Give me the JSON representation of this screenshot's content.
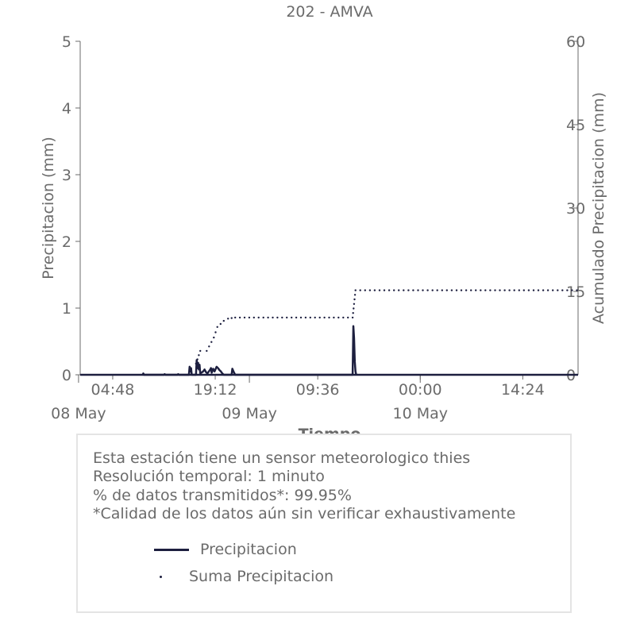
{
  "chart_data": {
    "type": "line",
    "title": "202 - AMVA",
    "xlabel": "Tiempo",
    "ylabel": "Precipitacion (mm)",
    "y2label": "Acumulado Precipitacion (mm)",
    "ylim": [
      0,
      5
    ],
    "y2lim": [
      0,
      60
    ],
    "yticks": [
      0,
      1,
      2,
      3,
      4,
      5
    ],
    "y2ticks": [
      0,
      15,
      30,
      45,
      60
    ],
    "xrange_hours": [
      "08 May 00:14",
      "10 May 22:10"
    ],
    "xticks_time": [
      "04:48",
      "19:12",
      "09:36",
      "00:00",
      "14:24"
    ],
    "xticks_date": [
      "08 May",
      "09 May",
      "10 May"
    ],
    "grid": false,
    "series": [
      {
        "name": "Precipitacion",
        "style": "solid",
        "color": "#1d1f3f",
        "points": [
          [
            "08 May 09:00",
            0.0
          ],
          [
            "08 May 09:06",
            0.02
          ],
          [
            "08 May 09:12",
            0.0
          ],
          [
            "08 May 12:00",
            0.0
          ],
          [
            "08 May 12:06",
            0.01
          ],
          [
            "08 May 12:12",
            0.0
          ],
          [
            "08 May 13:54",
            0.0
          ],
          [
            "08 May 14:00",
            0.01
          ],
          [
            "08 May 14:06",
            0.0
          ],
          [
            "08 May 15:30",
            0.0
          ],
          [
            "08 May 15:36",
            0.12
          ],
          [
            "08 May 15:42",
            0.05
          ],
          [
            "08 May 15:48",
            0.1
          ],
          [
            "08 May 15:54",
            0.0
          ],
          [
            "08 May 16:30",
            0.0
          ],
          [
            "08 May 16:36",
            0.22
          ],
          [
            "08 May 16:42",
            0.1
          ],
          [
            "08 May 16:48",
            0.18
          ],
          [
            "08 May 16:54",
            0.08
          ],
          [
            "08 May 17:00",
            0.15
          ],
          [
            "08 May 17:06",
            0.02
          ],
          [
            "08 May 17:30",
            0.05
          ],
          [
            "08 May 17:42",
            0.08
          ],
          [
            "08 May 17:54",
            0.04
          ],
          [
            "08 May 18:06",
            0.02
          ],
          [
            "08 May 18:30",
            0.08
          ],
          [
            "08 May 18:36",
            0.1
          ],
          [
            "08 May 18:42",
            0.03
          ],
          [
            "08 May 18:54",
            0.09
          ],
          [
            "08 May 19:06",
            0.05
          ],
          [
            "08 May 19:24",
            0.12
          ],
          [
            "08 May 19:36",
            0.1
          ],
          [
            "08 May 19:48",
            0.07
          ],
          [
            "08 May 20:00",
            0.05
          ],
          [
            "08 May 20:12",
            0.02
          ],
          [
            "08 May 20:24",
            0.0
          ],
          [
            "08 May 21:30",
            0.0
          ],
          [
            "08 May 21:36",
            0.09
          ],
          [
            "08 May 21:48",
            0.04
          ],
          [
            "08 May 22:00",
            0.0
          ],
          [
            "09 May 14:30",
            0.0
          ],
          [
            "09 May 14:36",
            0.73
          ],
          [
            "09 May 14:42",
            0.55
          ],
          [
            "09 May 14:48",
            0.2
          ],
          [
            "09 May 14:54",
            0.05
          ],
          [
            "09 May 15:00",
            0.0
          ]
        ]
      },
      {
        "name": "Suma Precipitacion",
        "style": "dotted",
        "color": "#1d1f3f",
        "points": [
          [
            "08 May 16:30",
            2.0
          ],
          [
            "08 May 17:06",
            4.3
          ],
          [
            "08 May 18:00",
            4.3
          ],
          [
            "08 May 19:00",
            6.7
          ],
          [
            "08 May 19:30",
            8.6
          ],
          [
            "08 May 20:24",
            9.7
          ],
          [
            "08 May 21:00",
            10.1
          ],
          [
            "08 May 22:00",
            10.3
          ],
          [
            "09 May 14:30",
            10.3
          ],
          [
            "09 May 14:54",
            15.2
          ],
          [
            "10 May 22:00",
            15.2
          ]
        ]
      }
    ]
  },
  "info": {
    "line1": "Esta estación tiene un sensor meteorologico thies",
    "line2": "Resolución temporal: 1 minuto",
    "line3": "% de datos transmitidos*: 99.95%",
    "line4": "*Calidad de los datos aún sin verificar exhaustivamente",
    "legend_precip": "Precipitacion",
    "legend_sum": "Suma Precipitacion"
  }
}
